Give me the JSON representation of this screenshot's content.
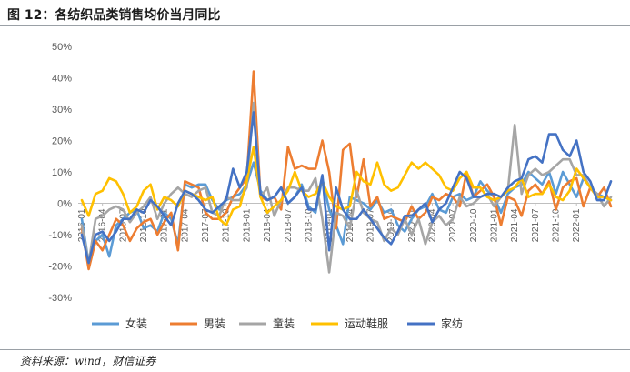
{
  "figure": {
    "title": "图 12：各纺织品类销售均价当月同比",
    "source": "资料来源：wind，财信证券"
  },
  "chart_data": {
    "type": "line",
    "title": "图 12：各纺织品类销售均价当月同比",
    "xlabel": "",
    "ylabel": "",
    "ylim": [
      -0.3,
      0.5
    ],
    "y_ticks": [
      -0.3,
      -0.2,
      -0.1,
      0,
      0.1,
      0.2,
      0.3,
      0.4,
      0.5
    ],
    "y_tick_labels": [
      "-30%",
      "-20%",
      "-10%",
      "0%",
      "10%",
      "20%",
      "30%",
      "40%",
      "50%"
    ],
    "x_tick_labels": [
      "2016-01",
      "2016-04",
      "2016-07",
      "2016-10",
      "2017-01",
      "2017-04",
      "2017-07",
      "2017-10",
      "2018-01",
      "2018-04",
      "2018-07",
      "2018-10",
      "2019-01",
      "2019-04",
      "2019-07",
      "2019-10",
      "2020-01",
      "2020-04",
      "2020-07",
      "2020-10",
      "2021-01",
      "2021-04",
      "2021-07",
      "2021-10",
      "2022-01"
    ],
    "x_tick_every": 3,
    "grid": false,
    "legend_position": "bottom",
    "months": 78,
    "series": [
      {
        "name": "女装",
        "color": "#5B9BD5",
        "values": [
          -0.05,
          -0.19,
          -0.12,
          -0.1,
          -0.17,
          -0.07,
          -0.05,
          -0.03,
          -0.02,
          -0.08,
          -0.07,
          -0.09,
          -0.03,
          -0.05,
          -0.13,
          0.06,
          0.05,
          0.06,
          0.06,
          0.01,
          -0.02,
          0.01,
          0.02,
          0.03,
          0.06,
          0.13,
          0.04,
          0.01,
          0.02,
          0.05,
          0.0,
          0.02,
          0.06,
          -0.01,
          -0.03,
          0.08,
          -0.02,
          -0.07,
          -0.13,
          0.02,
          0.01,
          0.0,
          -0.02,
          0.01,
          -0.03,
          -0.02,
          -0.07,
          -0.09,
          -0.05,
          -0.02,
          -0.01,
          0.03,
          -0.02,
          -0.03,
          0.02,
          0.03,
          0.01,
          0.02,
          0.07,
          0.04,
          0.02,
          -0.03,
          0.03,
          0.05,
          0.06,
          0.1,
          0.08,
          0.06,
          0.1,
          0.03,
          0.1,
          0.06,
          0.02,
          0.08,
          0.05,
          0.03,
          0.02,
          0.01
        ]
      },
      {
        "name": "男装",
        "color": "#ED7D31",
        "values": [
          -0.08,
          -0.21,
          -0.12,
          -0.15,
          -0.1,
          -0.05,
          -0.07,
          -0.12,
          -0.08,
          -0.06,
          -0.05,
          -0.1,
          -0.06,
          -0.03,
          -0.15,
          0.07,
          0.06,
          0.05,
          -0.03,
          -0.05,
          -0.05,
          -0.03,
          0.02,
          0.05,
          0.08,
          0.42,
          0.02,
          0.01,
          0.02,
          -0.02,
          0.18,
          0.11,
          0.12,
          0.11,
          0.11,
          0.2,
          0.1,
          -0.08,
          0.17,
          0.19,
          0.02,
          0.14,
          -0.01,
          0.02,
          -0.05,
          -0.04,
          -0.05,
          -0.06,
          -0.01,
          -0.05,
          -0.03,
          0.02,
          0.01,
          0.03,
          0.02,
          -0.01,
          0.1,
          0.02,
          0.04,
          0.06,
          0.02,
          -0.07,
          0.02,
          0.01,
          -0.04,
          0.04,
          0.06,
          0.03,
          0.07,
          -0.02,
          0.05,
          0.07,
          0.08,
          -0.01,
          0.05,
          0.02,
          0.05,
          -0.01
        ]
      },
      {
        "name": "童装",
        "color": "#A5A5A5",
        "values": [
          -0.07,
          -0.19,
          -0.05,
          -0.04,
          -0.02,
          -0.01,
          -0.02,
          -0.06,
          -0.03,
          -0.01,
          0.02,
          -0.05,
          0.0,
          0.03,
          0.05,
          0.03,
          0.02,
          0.04,
          0.05,
          -0.03,
          -0.04,
          0.02,
          0.01,
          0.01,
          0.05,
          0.32,
          0.02,
          0.05,
          -0.04,
          0.01,
          0.05,
          0.05,
          0.04,
          0.04,
          0.08,
          -0.05,
          -0.22,
          -0.03,
          -0.04,
          -0.08,
          0.04,
          -0.03,
          -0.05,
          -0.06,
          -0.12,
          -0.08,
          -0.1,
          -0.05,
          -0.1,
          -0.05,
          -0.13,
          -0.06,
          -0.04,
          -0.07,
          -0.05,
          0.02,
          -0.01,
          0.0,
          0.02,
          0.03,
          -0.01,
          0.02,
          0.04,
          0.25,
          0.03,
          0.09,
          0.11,
          0.09,
          0.1,
          0.12,
          0.14,
          0.14,
          0.09,
          0.09,
          0.05,
          0.03,
          -0.01,
          0.02
        ]
      },
      {
        "name": "运动鞋服",
        "color": "#FFC000",
        "values": [
          0.01,
          -0.04,
          0.03,
          0.04,
          0.08,
          0.07,
          0.03,
          -0.03,
          -0.01,
          0.04,
          0.06,
          -0.02,
          0.02,
          0.01,
          -0.01,
          0.04,
          0.03,
          0.02,
          0.01,
          0.02,
          -0.05,
          -0.07,
          -0.02,
          -0.01,
          0.07,
          0.18,
          0.02,
          -0.03,
          -0.01,
          0.01,
          0.04,
          0.1,
          0.04,
          0.02,
          0.03,
          0.07,
          0.02,
          -0.01,
          -0.02,
          -0.01,
          0.1,
          0.07,
          0.06,
          0.13,
          0.06,
          0.04,
          0.05,
          0.09,
          0.13,
          0.11,
          0.13,
          0.11,
          0.09,
          0.05,
          0.04,
          0.08,
          0.1,
          0.05,
          0.05,
          0.02,
          0.01,
          0.02,
          0.04,
          0.05,
          0.08,
          0.02,
          0.03,
          0.03,
          0.06,
          0.02,
          0.01,
          0.04,
          0.11,
          0.08,
          0.05,
          0.02,
          0.02,
          0.01
        ]
      },
      {
        "name": "家纺",
        "color": "#4472C4",
        "values": [
          -0.1,
          -0.19,
          -0.1,
          -0.09,
          -0.12,
          -0.09,
          -0.05,
          -0.05,
          -0.02,
          -0.03,
          0.01,
          -0.01,
          -0.04,
          -0.07,
          0.0,
          0.04,
          0.03,
          0.01,
          -0.02,
          -0.03,
          -0.01,
          0.01,
          0.11,
          0.05,
          0.1,
          0.29,
          0.03,
          0.01,
          0.02,
          0.05,
          0.0,
          0.02,
          0.05,
          -0.02,
          -0.02,
          0.09,
          -0.15,
          0.05,
          -0.02,
          -0.05,
          -0.05,
          -0.02,
          -0.05,
          -0.08,
          -0.11,
          -0.13,
          -0.09,
          -0.04,
          -0.04,
          -0.02,
          0.0,
          -0.06,
          -0.02,
          0.0,
          0.05,
          0.1,
          0.08,
          0.02,
          0.02,
          0.03,
          0.03,
          0.02,
          0.05,
          0.07,
          0.08,
          0.14,
          0.15,
          0.13,
          0.22,
          0.22,
          0.17,
          0.15,
          0.2,
          0.1,
          0.07,
          0.01,
          0.01,
          0.07
        ]
      }
    ]
  }
}
